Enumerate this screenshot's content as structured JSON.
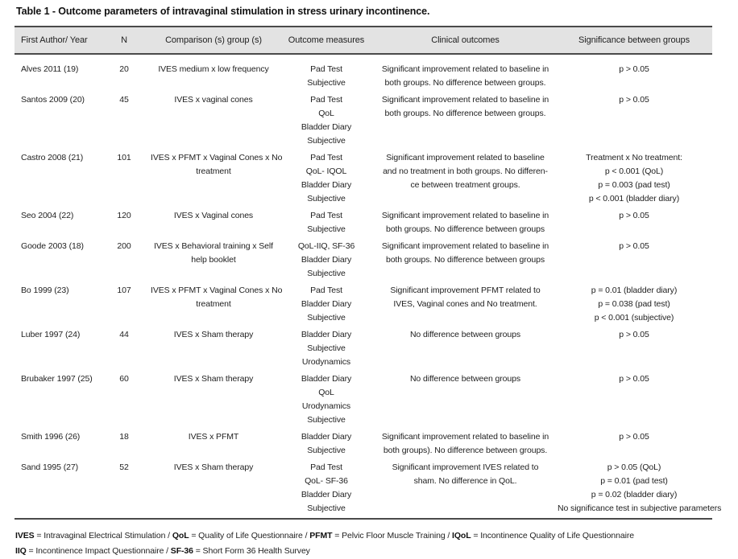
{
  "title": "Table 1 - Outcome parameters of intravaginal stimulation in stress urinary incontinence.",
  "colors": {
    "header_background": "#e3e3e3",
    "border": "#4a4a4a",
    "text": "#1f1f1f"
  },
  "table": {
    "columns": [
      "First Author/ Year",
      "N",
      "Comparison (s) group (s)",
      "Outcome measures",
      "Clinical outcomes",
      "Significance between groups"
    ],
    "rows": [
      {
        "first_author_year": "Alves 2011 (19)",
        "n": "20",
        "comparison_groups": [
          "IVES medium x low frequency"
        ],
        "outcome_measures": [
          "Pad Test",
          "Subjective"
        ],
        "clinical_outcomes": [
          "Significant improvement related to baseline in",
          "both groups. No difference between groups."
        ],
        "significance": [
          "p > 0.05"
        ]
      },
      {
        "first_author_year": "Santos 2009 (20)",
        "n": "45",
        "comparison_groups": [
          "IVES x vaginal cones"
        ],
        "outcome_measures": [
          "Pad Test",
          "QoL",
          "Bladder Diary",
          "Subjective"
        ],
        "clinical_outcomes": [
          "Significant improvement related to baseline in",
          "both groups. No difference between groups."
        ],
        "significance": [
          "p > 0.05"
        ]
      },
      {
        "first_author_year": "Castro 2008 (21)",
        "n": "101",
        "comparison_groups": [
          "IVES x PFMT x Vaginal Cones x No",
          "treatment"
        ],
        "outcome_measures": [
          "Pad Test",
          "QoL- IQOL",
          "Bladder Diary",
          "Subjective"
        ],
        "clinical_outcomes": [
          "Significant improvement related to baseline",
          "and no treatment in both groups. No differen-",
          "ce between treatment groups."
        ],
        "significance": [
          "Treatment x No treatment:",
          "p < 0.001 (QoL)",
          "p = 0.003 (pad test)",
          "p < 0.001 (bladder diary)"
        ]
      },
      {
        "first_author_year": "Seo 2004 (22)",
        "n": "120",
        "comparison_groups": [
          "IVES x Vaginal cones"
        ],
        "outcome_measures": [
          "Pad Test",
          "Subjective"
        ],
        "clinical_outcomes": [
          "Significant improvement related to baseline in",
          "both groups. No difference between groups"
        ],
        "significance": [
          "p > 0.05"
        ]
      },
      {
        "first_author_year": "Goode 2003 (18)",
        "n": "200",
        "comparison_groups": [
          "IVES x Behavioral training x Self",
          "help booklet"
        ],
        "outcome_measures": [
          "QoL-IIQ, SF-36",
          "Bladder Diary",
          "Subjective"
        ],
        "clinical_outcomes": [
          "Significant improvement related to baseline in",
          "both groups. No difference between groups"
        ],
        "significance": [
          "p > 0.05"
        ]
      },
      {
        "first_author_year": "Bo 1999 (23)",
        "n": "107",
        "comparison_groups": [
          "IVES x PFMT x Vaginal Cones x No",
          "treatment"
        ],
        "outcome_measures": [
          "Pad Test",
          "Bladder Diary",
          "Subjective"
        ],
        "clinical_outcomes": [
          "Significant improvement PFMT related to",
          "IVES, Vaginal cones and No treatment."
        ],
        "significance": [
          "p = 0.01 (bladder diary)",
          "p = 0.038 (pad test)",
          "p < 0.001 (subjective)"
        ]
      },
      {
        "first_author_year": "Luber 1997 (24)",
        "n": "44",
        "comparison_groups": [
          "IVES x Sham therapy"
        ],
        "outcome_measures": [
          "Bladder Diary",
          "Subjective",
          "Urodynamics"
        ],
        "clinical_outcomes": [
          "No difference between groups"
        ],
        "significance": [
          "p > 0.05"
        ]
      },
      {
        "first_author_year": "Brubaker 1997 (25)",
        "n": "60",
        "comparison_groups": [
          "IVES x Sham therapy"
        ],
        "outcome_measures": [
          "Bladder Diary",
          "QoL",
          "Urodynamics",
          "Subjective"
        ],
        "clinical_outcomes": [
          "No difference between groups"
        ],
        "significance": [
          "p > 0.05"
        ]
      },
      {
        "first_author_year": "Smith 1996 (26)",
        "n": "18",
        "comparison_groups": [
          "IVES x PFMT"
        ],
        "outcome_measures": [
          "Bladder Diary",
          "Subjective"
        ],
        "clinical_outcomes": [
          "Significant improvement related to baseline in",
          "both groups). No difference between groups."
        ],
        "significance": [
          "p > 0.05"
        ]
      },
      {
        "first_author_year": "Sand 1995 (27)",
        "n": "52",
        "comparison_groups": [
          "IVES x Sham therapy"
        ],
        "outcome_measures": [
          "Pad Test",
          "QoL- SF-36",
          "Bladder Diary",
          "Subjective"
        ],
        "clinical_outcomes": [
          "Significant improvement IVES related to",
          "sham. No difference in QoL."
        ],
        "significance": [
          "p > 0.05 (QoL)",
          "p = 0.01 (pad test)",
          "p = 0.02 (bladder diary)",
          "No significance test in subjective parameters"
        ]
      }
    ]
  },
  "footnotes": [
    {
      "items": [
        {
          "term": "IVES",
          "definition": "Intravaginal Electrical Stimulation"
        },
        {
          "term": "QoL",
          "definition": "Quality of Life Questionnaire"
        },
        {
          "term": "PFMT",
          "definition": "Pelvic Floor Muscle Training"
        },
        {
          "term": "IQoL",
          "definition": "Incontinence Quality of Life Questionnaire"
        }
      ]
    },
    {
      "items": [
        {
          "term": "IIQ",
          "definition": "Incontinence Impact Questionnaire"
        },
        {
          "term": "SF-36",
          "definition": "Short Form 36 Health Survey"
        }
      ]
    }
  ]
}
